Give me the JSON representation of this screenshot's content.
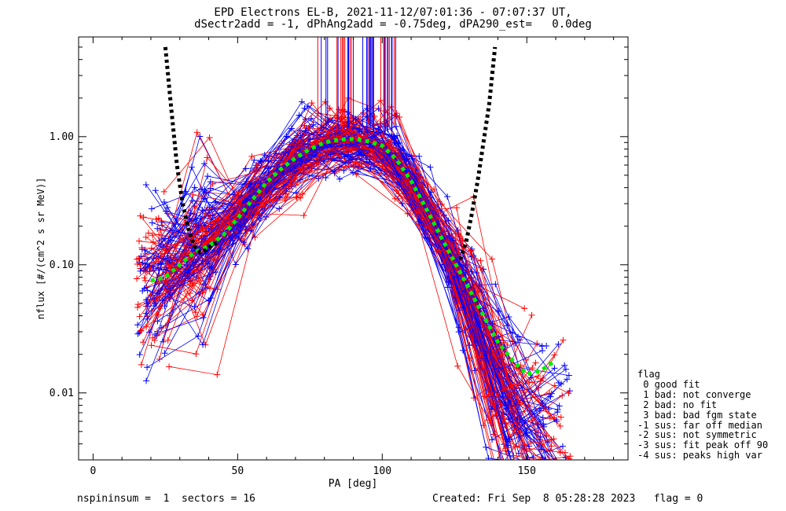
{
  "chart_data": {
    "type": "scatter",
    "title": "EPD Electrons EL-B, 2021-11-12/07:01:36 - 07:07:37 UT,",
    "subtitle": "dSectr2add = -1, dPhAng2add = -0.75deg, dPA290_est=   0.0deg",
    "xlabel": "PA [deg]",
    "ylabel": "nflux [#/(cm^2 s sr MeV)]",
    "xlim": [
      -5,
      185
    ],
    "ylim": [
      0.003,
      6
    ],
    "yscale": "log",
    "x_ticks": [
      0,
      50,
      100,
      150
    ],
    "x_tick_labels": [
      "0",
      "50",
      "100",
      "150"
    ],
    "y_ticks": [
      0.01,
      0.1,
      1.0
    ],
    "y_tick_labels": [
      "0.01",
      "0.10",
      "1.00"
    ],
    "series": [
      {
        "color": "#ff0000",
        "kind": "red-spins"
      },
      {
        "color": "#0000ff",
        "kind": "blue-spins"
      },
      {
        "color": "#00ee00",
        "kind": "median-fit",
        "x": [
          20,
          25,
          30,
          35,
          40,
          45,
          50,
          55,
          60,
          65,
          70,
          75,
          80,
          85,
          90,
          95,
          100,
          105,
          110,
          115,
          120,
          125,
          130,
          135,
          140,
          145,
          150,
          155,
          160
        ],
        "y": [
          0.075,
          0.08,
          0.1,
          0.125,
          0.14,
          0.17,
          0.23,
          0.32,
          0.44,
          0.56,
          0.68,
          0.8,
          0.9,
          0.95,
          0.96,
          0.92,
          0.85,
          0.66,
          0.45,
          0.28,
          0.17,
          0.105,
          0.065,
          0.04,
          0.025,
          0.018,
          0.014,
          0.015,
          0.018
        ]
      },
      {
        "color": "#000000",
        "kind": "loss-cone-model",
        "x": [
          25,
          27,
          29,
          31,
          33,
          35,
          37,
          39,
          41,
          43
        ],
        "y": [
          5,
          1.7,
          0.6,
          0.3,
          0.19,
          0.14,
          0.125,
          0.13,
          0.14,
          0.15
        ]
      },
      {
        "color": "#000000",
        "kind": "loss-cone-model-right",
        "x": [
          127,
          129,
          131,
          133,
          135,
          137,
          139
        ],
        "y": [
          0.11,
          0.15,
          0.25,
          0.45,
          0.9,
          1.8,
          5
        ]
      }
    ]
  },
  "legend": {
    "title": "flag",
    "lines": [
      " 0 good fit",
      " 1 bad: not converge",
      " 2 bad: no fit",
      " 3 bad: bad fgm state",
      "-1 sus: far off median",
      "-2 sus: not symmetric",
      "-3 sus: fit peak off 90",
      "-4 sus: peaks high var"
    ]
  },
  "footer": {
    "left": "nspininsum =  1  sectors = 16",
    "right": "Created: Fri Sep  8 05:28:28 2023   flag = 0"
  }
}
